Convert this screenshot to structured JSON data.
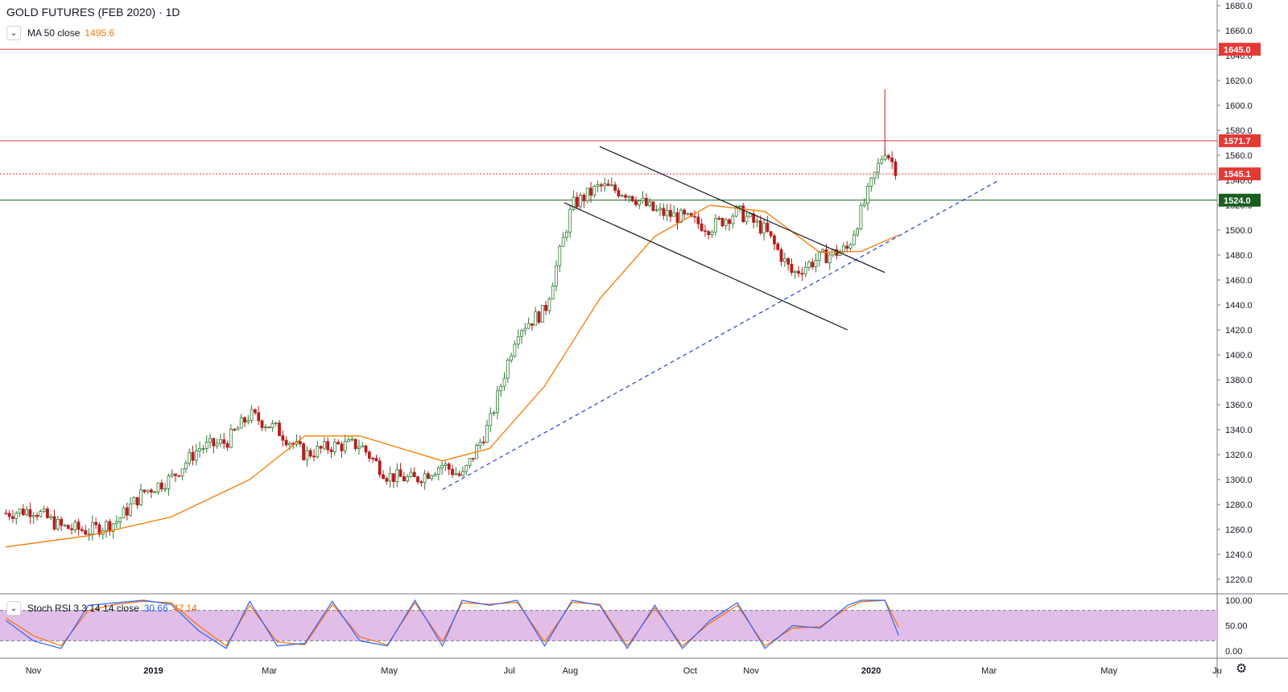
{
  "header": {
    "title": "GOLD FUTURES (FEB 2020) · 1D",
    "ma_label": "MA 50 close",
    "ma_value": "1495.6",
    "stoch_label": "Stoch RSI 3 3 14 14 close",
    "stoch_k": "30.66",
    "stoch_d": "47.14"
  },
  "colors": {
    "up": "#2e7d32",
    "down": "#b71c1c",
    "ma": "#f57c00",
    "resistance": "#e53935",
    "support": "#1b5e20",
    "trend": "#1e40d8",
    "channel": "#131722",
    "stoch_k": "#2962ff",
    "stoch_d": "#ff6d00",
    "stoch_band": "#e1bee7"
  },
  "icons": {
    "toggle": "chevron-down-icon",
    "settings": "gear-icon"
  },
  "chart_data": {
    "type": "candlestick",
    "title": "GOLD FUTURES (FEB 2020) · 1D",
    "timeframe": "1D",
    "price_axis": {
      "range": [
        1210,
        1690
      ],
      "ticks": [
        "1220.0",
        "1240.0",
        "1260.0",
        "1280.0",
        "1300.0",
        "1320.0",
        "1340.0",
        "1360.0",
        "1380.0",
        "1400.0",
        "1420.0",
        "1440.0",
        "1460.0",
        "1480.0",
        "1500.0",
        "1520.0",
        "1540.0",
        "1560.0",
        "1580.0",
        "1600.0",
        "1620.0",
        "1640.0",
        "1660.0",
        "1680.0"
      ]
    },
    "time_axis": {
      "labels": [
        "Nov",
        "2019",
        "Mar",
        "May",
        "Jul",
        "Aug",
        "Oct",
        "Nov",
        "2020",
        "Mar",
        "May",
        "Ju"
      ]
    },
    "horizontal_levels": [
      {
        "value": 1645.0,
        "label": "1645.0",
        "kind": "resistance"
      },
      {
        "value": 1571.7,
        "label": "1571.7",
        "kind": "resistance"
      },
      {
        "value": 1545.1,
        "label": "1545.1",
        "kind": "last-price"
      },
      {
        "value": 1524.0,
        "label": "1524.0",
        "kind": "support"
      }
    ],
    "close_path": [
      [
        "2018-10-18",
        1273
      ],
      [
        "2018-11-01",
        1276
      ],
      [
        "2018-11-15",
        1262
      ],
      [
        "2018-11-29",
        1259
      ],
      [
        "2018-12-13",
        1266
      ],
      [
        "2018-12-27",
        1290
      ],
      [
        "2019-01-10",
        1301
      ],
      [
        "2019-01-24",
        1325
      ],
      [
        "2019-02-07",
        1330
      ],
      [
        "2019-02-19",
        1352
      ],
      [
        "2019-03-05",
        1340
      ],
      [
        "2019-03-19",
        1320
      ],
      [
        "2019-04-02",
        1327
      ],
      [
        "2019-04-16",
        1328
      ],
      [
        "2019-04-30",
        1303
      ],
      [
        "2019-05-14",
        1300
      ],
      [
        "2019-05-28",
        1312
      ],
      [
        "2019-06-07",
        1302
      ],
      [
        "2019-06-21",
        1345
      ],
      [
        "2019-07-05",
        1420
      ],
      [
        "2019-07-19",
        1435
      ],
      [
        "2019-08-02",
        1520
      ],
      [
        "2019-08-16",
        1535
      ],
      [
        "2019-08-30",
        1530
      ],
      [
        "2019-09-13",
        1515
      ],
      [
        "2019-09-27",
        1510
      ],
      [
        "2019-10-11",
        1502
      ],
      [
        "2019-10-25",
        1515
      ],
      [
        "2019-11-08",
        1500
      ],
      [
        "2019-11-22",
        1465
      ],
      [
        "2019-12-06",
        1478
      ],
      [
        "2019-12-20",
        1485
      ],
      [
        "2019-12-27",
        1515
      ],
      [
        "2020-01-03",
        1545
      ],
      [
        "2020-01-08",
        1565
      ],
      [
        "2020-01-15",
        1545.1
      ]
    ],
    "moving_average": {
      "name": "MA 50 close",
      "last": 1495.6,
      "points": [
        [
          "2018-10-18",
          1246
        ],
        [
          "2018-11-29",
          1255
        ],
        [
          "2019-01-10",
          1270
        ],
        [
          "2019-02-19",
          1300
        ],
        [
          "2019-03-19",
          1335
        ],
        [
          "2019-04-16",
          1335
        ],
        [
          "2019-05-28",
          1315
        ],
        [
          "2019-06-21",
          1325
        ],
        [
          "2019-07-19",
          1375
        ],
        [
          "2019-08-16",
          1445
        ],
        [
          "2019-09-13",
          1495
        ],
        [
          "2019-10-11",
          1520
        ],
        [
          "2019-11-08",
          1515
        ],
        [
          "2019-12-06",
          1482
        ],
        [
          "2019-12-27",
          1483
        ],
        [
          "2020-01-15",
          1496
        ]
      ]
    },
    "trend_lines": [
      {
        "kind": "channel-upper",
        "start": [
          "2019-08-16",
          1567
        ],
        "end": [
          "2020-01-08",
          1466
        ]
      },
      {
        "kind": "channel-lower",
        "start": [
          "2019-07-29",
          1522
        ],
        "end": [
          "2019-12-20",
          1420
        ]
      },
      {
        "kind": "rising-trend",
        "start": [
          "2019-05-28",
          1292
        ],
        "end": [
          "2020-03-06",
          1540
        ]
      }
    ],
    "stoch_rsi": {
      "name": "Stoch RSI 3 3 14 14 close",
      "k_last": 30.66,
      "d_last": 47.14,
      "range": [
        0,
        100
      ],
      "ticks": [
        "0.00",
        "50.00",
        "100.00"
      ],
      "band": [
        20,
        80
      ],
      "k_path": [
        [
          "2018-10-18",
          60
        ],
        [
          "2018-11-01",
          20
        ],
        [
          "2018-11-15",
          5
        ],
        [
          "2018-11-29",
          90
        ],
        [
          "2018-12-13",
          95
        ],
        [
          "2018-12-27",
          100
        ],
        [
          "2019-01-10",
          92
        ],
        [
          "2019-01-24",
          40
        ],
        [
          "2019-02-07",
          5
        ],
        [
          "2019-02-19",
          98
        ],
        [
          "2019-03-05",
          10
        ],
        [
          "2019-03-19",
          15
        ],
        [
          "2019-04-02",
          98
        ],
        [
          "2019-04-16",
          20
        ],
        [
          "2019-04-30",
          10
        ],
        [
          "2019-05-14",
          100
        ],
        [
          "2019-05-28",
          10
        ],
        [
          "2019-06-07",
          100
        ],
        [
          "2019-06-21",
          90
        ],
        [
          "2019-07-05",
          100
        ],
        [
          "2019-07-19",
          10
        ],
        [
          "2019-08-02",
          100
        ],
        [
          "2019-08-16",
          90
        ],
        [
          "2019-08-30",
          5
        ],
        [
          "2019-09-13",
          90
        ],
        [
          "2019-09-27",
          5
        ],
        [
          "2019-10-11",
          60
        ],
        [
          "2019-10-25",
          95
        ],
        [
          "2019-11-08",
          5
        ],
        [
          "2019-11-22",
          50
        ],
        [
          "2019-12-06",
          45
        ],
        [
          "2019-12-20",
          90
        ],
        [
          "2019-12-27",
          100
        ],
        [
          "2020-01-08",
          100
        ],
        [
          "2020-01-15",
          30.66
        ]
      ],
      "d_path": [
        [
          "2018-10-18",
          65
        ],
        [
          "2018-11-01",
          30
        ],
        [
          "2018-11-15",
          10
        ],
        [
          "2018-11-29",
          80
        ],
        [
          "2018-12-13",
          92
        ],
        [
          "2018-12-27",
          98
        ],
        [
          "2019-01-10",
          95
        ],
        [
          "2019-01-24",
          50
        ],
        [
          "2019-02-07",
          10
        ],
        [
          "2019-02-19",
          90
        ],
        [
          "2019-03-05",
          18
        ],
        [
          "2019-03-19",
          12
        ],
        [
          "2019-04-02",
          92
        ],
        [
          "2019-04-16",
          28
        ],
        [
          "2019-04-30",
          12
        ],
        [
          "2019-05-14",
          95
        ],
        [
          "2019-05-28",
          18
        ],
        [
          "2019-06-07",
          95
        ],
        [
          "2019-06-21",
          92
        ],
        [
          "2019-07-05",
          96
        ],
        [
          "2019-07-19",
          18
        ],
        [
          "2019-08-02",
          96
        ],
        [
          "2019-08-16",
          92
        ],
        [
          "2019-08-30",
          10
        ],
        [
          "2019-09-13",
          85
        ],
        [
          "2019-09-27",
          10
        ],
        [
          "2019-10-11",
          55
        ],
        [
          "2019-10-25",
          90
        ],
        [
          "2019-11-08",
          10
        ],
        [
          "2019-11-22",
          45
        ],
        [
          "2019-12-06",
          48
        ],
        [
          "2019-12-20",
          85
        ],
        [
          "2019-12-27",
          97
        ],
        [
          "2020-01-08",
          100
        ],
        [
          "2020-01-15",
          47.14
        ]
      ]
    }
  }
}
